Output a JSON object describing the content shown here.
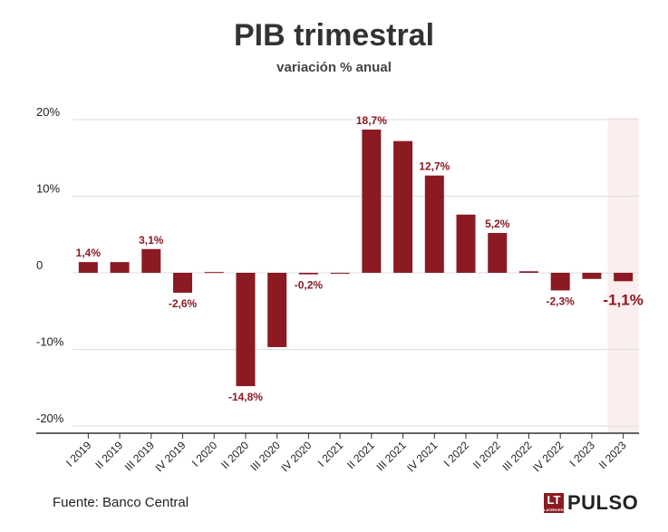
{
  "chart_data": {
    "type": "bar",
    "title": "PIB trimestral",
    "subtitle": "variación % anual",
    "categories": [
      "I 2019",
      "II 2019",
      "III 2019",
      "IV 2019",
      "I 2020",
      "II 2020",
      "III 2020",
      "IV 2020",
      "I 2021",
      "II 2021",
      "III 2021",
      "IV 2021",
      "I 2022",
      "II 2022",
      "III 2022",
      "IV 2022",
      "I 2023",
      "II 2023"
    ],
    "values": [
      1.4,
      1.4,
      3.1,
      -2.6,
      0.1,
      -14.8,
      -9.7,
      -0.2,
      -0.1,
      18.7,
      17.2,
      12.7,
      7.6,
      5.2,
      0.2,
      -2.3,
      -0.8,
      -1.1
    ],
    "data_labels": [
      "1,4%",
      "",
      "3,1%",
      "-2,6%",
      "",
      "-14,8%",
      "",
      "-0,2%",
      "",
      "18,7%",
      "",
      "12,7%",
      "",
      "5,2%",
      "",
      "-2,3%",
      "",
      "-1,1%"
    ],
    "highlight_index": 17,
    "y_ticks": [
      20,
      10,
      0,
      -10,
      -20
    ],
    "y_tick_labels": [
      "20%",
      "10%",
      "0",
      "-10%",
      "-20%"
    ],
    "ylim": [
      -20,
      20
    ],
    "grid": true,
    "bar_color": "#8b1a22",
    "highlight_bg": "#fbeeee"
  },
  "source": "Fuente: Banco Central",
  "logo": {
    "box_text": "LT",
    "box_subtext": "LATERCERA",
    "text": "PULSO"
  }
}
